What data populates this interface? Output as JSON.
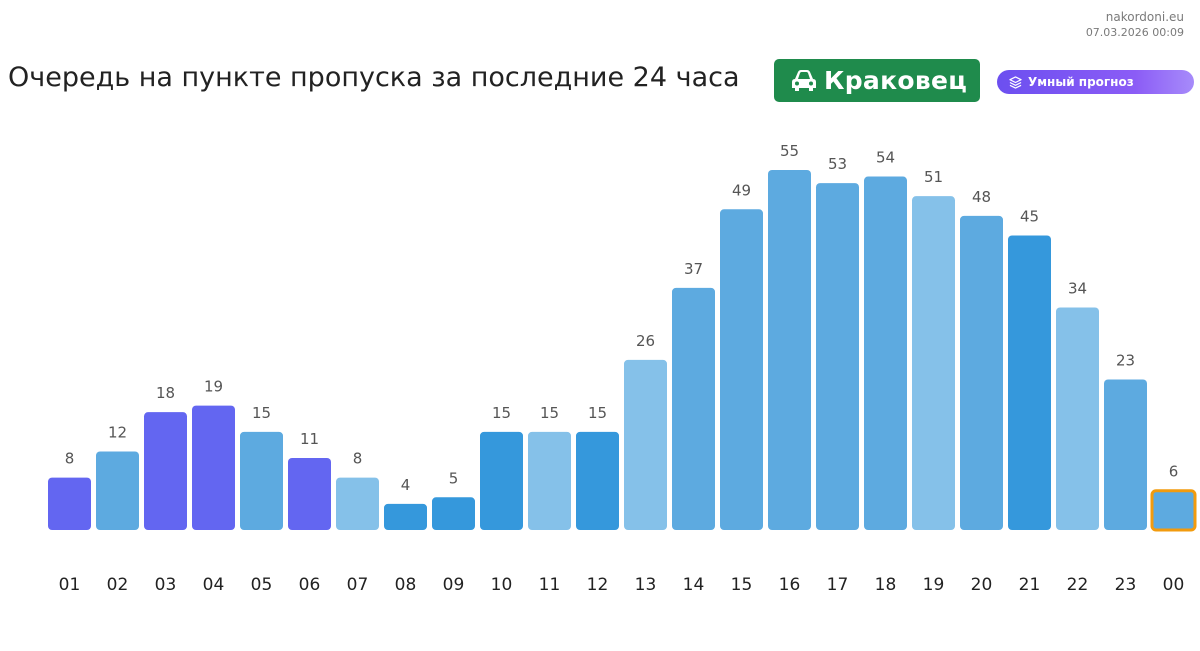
{
  "header": {
    "site": "nakordoni.eu",
    "datetime": "07.03.2026 00:09",
    "title": "Очередь на пункте пропуска за последние 24 часа",
    "checkpoint": "Краковец",
    "forecast_label": "Умный прогноз"
  },
  "colors": {
    "indigo": "#6366f1",
    "mid_blue": "#5daae0",
    "light_blue": "#85c1e9",
    "dark_blue": "#3598dc",
    "highlight_border": "#f29b0e",
    "badge_green": "#1f8b4c"
  },
  "chart_data": {
    "type": "bar",
    "title": "Очередь на пункте пропуска за последние 24 часа",
    "xlabel": "",
    "ylabel": "",
    "ylim": [
      0,
      60
    ],
    "grid": false,
    "legend": "none",
    "categories": [
      "01",
      "02",
      "03",
      "04",
      "05",
      "06",
      "07",
      "08",
      "09",
      "10",
      "11",
      "12",
      "13",
      "14",
      "15",
      "16",
      "17",
      "18",
      "19",
      "20",
      "21",
      "22",
      "23",
      "00"
    ],
    "values": [
      8,
      12,
      18,
      19,
      15,
      11,
      8,
      4,
      5,
      15,
      15,
      15,
      26,
      37,
      49,
      55,
      53,
      54,
      51,
      48,
      45,
      34,
      23,
      6
    ],
    "bar_colors": [
      "indigo",
      "mid_blue",
      "indigo",
      "indigo",
      "mid_blue",
      "indigo",
      "light_blue",
      "dark_blue",
      "dark_blue",
      "dark_blue",
      "light_blue",
      "dark_blue",
      "light_blue",
      "mid_blue",
      "mid_blue",
      "mid_blue",
      "mid_blue",
      "mid_blue",
      "light_blue",
      "mid_blue",
      "dark_blue",
      "light_blue",
      "mid_blue",
      "mid_blue"
    ],
    "highlighted_category": "00"
  }
}
